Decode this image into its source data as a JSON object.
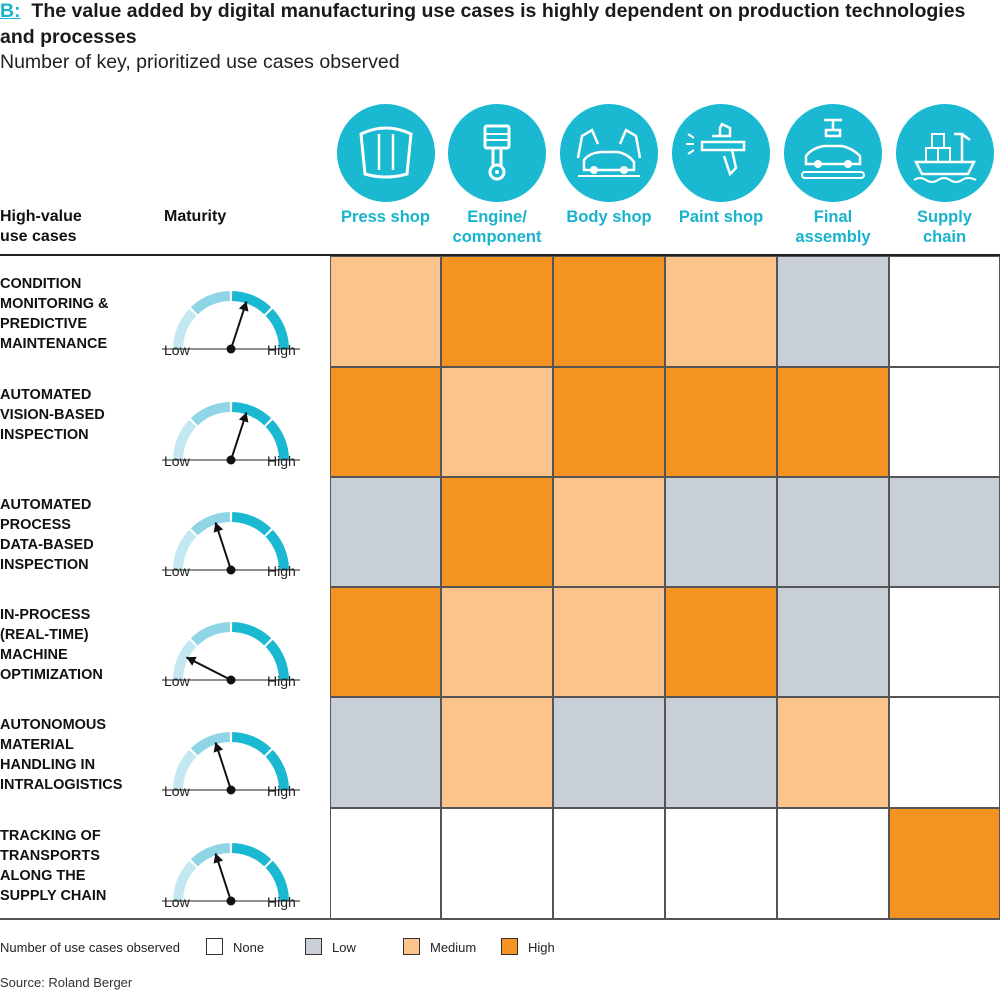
{
  "header": {
    "label": "B:",
    "title": "The value added by digital manufacturing use cases is highly dependent on production technologies and processes",
    "subtitle": "Number of key, prioritized use cases observed"
  },
  "columns": {
    "use_cases_header": "High-value\nuse cases",
    "maturity_header": "Maturity"
  },
  "gauge_labels": {
    "low": "Low",
    "high": "High"
  },
  "colors": {
    "None": "#ffffff",
    "Low": "#c9cfd6",
    "Medium": "#fcc38c",
    "High": "#f59322",
    "accent": "#1ab8d1",
    "gauge_light": "#c4e8f1",
    "gauge_mid": "#8fd5e6",
    "gauge_dark": "#1ab8d1"
  },
  "icons": [
    "car-hood-icon",
    "piston-icon",
    "robot-arms-car-icon",
    "spray-gun-icon",
    "car-assembly-line-icon",
    "cargo-ship-icon"
  ],
  "chart_data": {
    "type": "heatmap",
    "title": "The value added by digital manufacturing use cases is highly dependent on production technologies and processes",
    "subtitle": "Number of key, prioritized use cases observed",
    "columns": [
      "Press shop",
      "Engine/\ncomponent",
      "Body shop",
      "Paint shop",
      "Final\nassembly",
      "Supply\nchain"
    ],
    "rows": [
      {
        "label": "CONDITION\nMONITORING &\nPREDICTIVE\nMAINTENANCE",
        "maturity": 0.6,
        "values": [
          "Medium",
          "High",
          "High",
          "Medium",
          "Low",
          "None"
        ]
      },
      {
        "label": "AUTOMATED\nVISION-BASED\nINSPECTION",
        "maturity": 0.6,
        "values": [
          "High",
          "Medium",
          "High",
          "High",
          "High",
          "None"
        ]
      },
      {
        "label": "AUTOMATED\nPROCESS\nDATA-BASED\nINSPECTION",
        "maturity": 0.4,
        "values": [
          "Low",
          "High",
          "Medium",
          "Low",
          "Low",
          "Low"
        ]
      },
      {
        "label": "IN-PROCESS\n(REAL-TIME)\nMACHINE\nOPTIMIZATION",
        "maturity": 0.15,
        "values": [
          "High",
          "Medium",
          "Medium",
          "High",
          "Low",
          "None"
        ]
      },
      {
        "label": "AUTONOMOUS\nMATERIAL\nHANDLING IN\nINTRALOGISTICS",
        "maturity": 0.4,
        "values": [
          "Low",
          "Medium",
          "Low",
          "Low",
          "Medium",
          "None"
        ]
      },
      {
        "label": "TRACKING OF\nTRANSPORTS\nALONG THE\nSUPPLY CHAIN",
        "maturity": 0.4,
        "values": [
          "None",
          "None",
          "None",
          "None",
          "None",
          "High"
        ]
      }
    ],
    "legend_title": "Number of use cases observed",
    "legend": [
      "None",
      "Low",
      "Medium",
      "High"
    ]
  },
  "source": "Source: Roland Berger"
}
